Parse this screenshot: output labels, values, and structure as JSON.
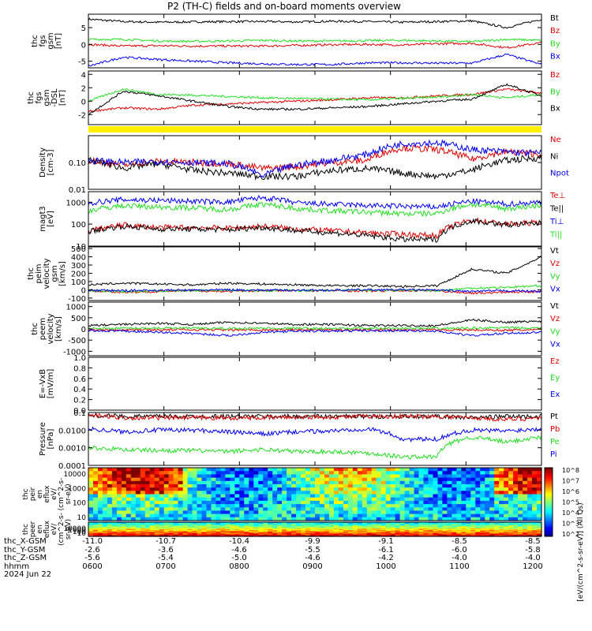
{
  "title": "P2 (TH-C) fields and on-board moments overview",
  "colors": {
    "black": "#000000",
    "red": "#dd0000",
    "green": "#22dd22",
    "blue": "#0000ee",
    "yellow": "#ffee00"
  },
  "chart_data": {
    "type": "line",
    "x_time_ticks": [
      "0600",
      "0700",
      "0800",
      "0900",
      "1000",
      "1100",
      "1200"
    ],
    "x_time_range": [
      "0600",
      "1200"
    ],
    "panels": [
      {
        "id": "fgs_gsm",
        "ylabel": [
          "thc",
          "fgs",
          "gsm",
          "[nT]"
        ],
        "ylim": [
          -7,
          9
        ],
        "yticks": [
          "5",
          "0",
          "-5"
        ],
        "series": [
          {
            "name": "Bt",
            "color": "black",
            "values": [
              7.5,
              6.8,
              6.6,
              6.7,
              6.8,
              6.8,
              6.7,
              6.9,
              6.8,
              6.6,
              6.8,
              7.0,
              5.0,
              7.5
            ]
          },
          {
            "name": "Bz",
            "color": "red",
            "values": [
              0,
              -0.5,
              -0.4,
              -0.5,
              -0.5,
              -0.5,
              -0.3,
              -0.1,
              0,
              -0.2,
              0.2,
              0.3,
              -1,
              0.5
            ]
          },
          {
            "name": "By",
            "color": "green",
            "values": [
              1.5,
              1.5,
              1.0,
              0.9,
              1.0,
              1.2,
              1.0,
              1.0,
              1.1,
              1.2,
              1.0,
              0.8,
              1.5,
              1.2
            ]
          },
          {
            "name": "Bx",
            "color": "blue",
            "values": [
              -6.5,
              -3.8,
              -4.5,
              -5.0,
              -5.5,
              -5.8,
              -6.0,
              -6.0,
              -5.5,
              -5.5,
              -5.6,
              -5.6,
              -3,
              -6
            ]
          }
        ]
      },
      {
        "id": "fgs_dsl",
        "ylabel": [
          "thc",
          "fgs",
          "gsm",
          "-DSL",
          "[nT]"
        ],
        "ylim": [
          -3.5,
          4.5
        ],
        "yticks": [
          "4",
          "2",
          "0",
          "-2"
        ],
        "series": [
          {
            "name": "Bz",
            "color": "red",
            "values": [
              -1.5,
              -1.0,
              -1.2,
              -0.6,
              -0.4,
              -0.2,
              0,
              0.2,
              0.5,
              0.5,
              0.8,
              1.0,
              1.8,
              1.2
            ]
          },
          {
            "name": "By",
            "color": "green",
            "values": [
              0,
              1.8,
              1.0,
              0.9,
              0.7,
              0.5,
              0.4,
              0.3,
              0.2,
              0.4,
              0.6,
              1.0,
              0.5,
              1.0
            ]
          },
          {
            "name": "Bx",
            "color": "black",
            "values": [
              -2,
              1.5,
              0.8,
              0,
              -0.8,
              -1.2,
              -1.2,
              -1.0,
              -0.8,
              -0.4,
              0,
              0.3,
              2.5,
              0.8
            ]
          }
        ]
      },
      {
        "id": "density",
        "ylabel": [
          "Density",
          "[cm-3]"
        ],
        "ylim": [
          0.01,
          1.0
        ],
        "log": true,
        "yticks": [
          "0.10",
          "0.01"
        ],
        "series": [
          {
            "name": "Ne",
            "color": "red",
            "values": [
              0.12,
              0.08,
              0.11,
              0.1,
              0.09,
              0.06,
              0.07,
              0.1,
              0.12,
              0.35,
              0.3,
              0.13,
              0.25,
              0.2
            ]
          },
          {
            "name": "Ni",
            "color": "black",
            "values": [
              0.12,
              0.06,
              0.09,
              0.05,
              0.04,
              0.03,
              0.03,
              0.05,
              0.06,
              0.04,
              0.03,
              0.05,
              0.12,
              0.15
            ]
          },
          {
            "name": "Npot",
            "color": "blue",
            "values": [
              0.12,
              0.1,
              0.11,
              0.1,
              0.09,
              0.03,
              0.08,
              0.12,
              0.2,
              0.5,
              0.55,
              0.3,
              0.25,
              0.22
            ]
          }
        ]
      },
      {
        "id": "temperature",
        "ylabel": [
          "magt3",
          "[eV]"
        ],
        "ylim": [
          10,
          3000
        ],
        "log": true,
        "yticks": [
          "1000",
          "100",
          "10"
        ],
        "series": [
          {
            "name": "Te⊥",
            "color": "red",
            "values": [
              50,
              90,
              70,
              70,
              65,
              80,
              60,
              50,
              40,
              35,
              30,
              150,
              100,
              120
            ]
          },
          {
            "name": "Te||",
            "color": "black",
            "values": [
              45,
              80,
              60,
              60,
              55,
              70,
              50,
              40,
              30,
              20,
              20,
              140,
              90,
              110
            ]
          },
          {
            "name": "Ti⊥",
            "color": "blue",
            "values": [
              900,
              1300,
              1200,
              1100,
              1000,
              1600,
              900,
              800,
              700,
              650,
              600,
              1100,
              800,
              1000
            ]
          },
          {
            "name": "Ti||",
            "color": "green",
            "values": [
              400,
              700,
              600,
              550,
              450,
              800,
              500,
              400,
              350,
              300,
              300,
              800,
              500,
              700
            ]
          }
        ]
      },
      {
        "id": "peim_velocity",
        "ylabel": [
          "thc",
          "peim",
          "velocity",
          "gsm",
          "[km/s]"
        ],
        "ylim": [
          -130,
          520
        ],
        "yticks": [
          "500",
          "400",
          "300",
          "200",
          "100",
          "0",
          "-100"
        ],
        "series": [
          {
            "name": "Vt",
            "color": "black",
            "values": [
              60,
              80,
              70,
              60,
              80,
              70,
              60,
              50,
              50,
              40,
              50,
              250,
              200,
              400
            ]
          },
          {
            "name": "Vz",
            "color": "red",
            "values": [
              -10,
              -30,
              -20,
              -10,
              -20,
              -10,
              -10,
              -10,
              -15,
              -10,
              -10,
              -40,
              -30,
              -20
            ]
          },
          {
            "name": "Vy",
            "color": "green",
            "values": [
              -10,
              -20,
              -15,
              -10,
              -5,
              -10,
              -10,
              -5,
              -5,
              -5,
              -10,
              20,
              30,
              50
            ]
          },
          {
            "name": "Vx",
            "color": "blue",
            "values": [
              -5,
              -10,
              -5,
              -5,
              0,
              -5,
              -5,
              -5,
              0,
              0,
              -5,
              -20,
              -10,
              -20
            ]
          }
        ]
      },
      {
        "id": "peem_velocity",
        "ylabel": [
          "thc",
          "peem",
          "velocity",
          "[km/s]"
        ],
        "ylim": [
          -1200,
          1200
        ],
        "yticks": [
          "1000",
          "500",
          "0",
          "-500",
          "-1000"
        ],
        "series": [
          {
            "name": "Vt",
            "color": "black",
            "values": [
              150,
              200,
              250,
              200,
              300,
              250,
              200,
              200,
              150,
              150,
              150,
              400,
              300,
              350
            ]
          },
          {
            "name": "Vz",
            "color": "red",
            "values": [
              -40,
              -30,
              -40,
              -30,
              -50,
              -40,
              -30,
              -40,
              -30,
              -30,
              -40,
              -50,
              -60,
              -40
            ]
          },
          {
            "name": "Vy",
            "color": "green",
            "values": [
              20,
              30,
              40,
              30,
              20,
              30,
              30,
              20,
              20,
              30,
              20,
              40,
              50,
              30
            ]
          },
          {
            "name": "Vx",
            "color": "blue",
            "values": [
              -80,
              -100,
              -150,
              -200,
              -300,
              -150,
              -100,
              -100,
              -80,
              -80,
              -100,
              -300,
              -200,
              -150
            ]
          }
        ]
      },
      {
        "id": "efield",
        "ylabel": [
          "E=-VxB",
          "[mV/m]"
        ],
        "ylim": [
          0,
          1.0
        ],
        "yticks": [
          "1.0",
          "0.8",
          "0.6",
          "0.4",
          "0.2",
          "0.0"
        ],
        "series": [
          {
            "name": "Ez",
            "color": "red",
            "values": []
          },
          {
            "name": "Ey",
            "color": "green",
            "values": []
          },
          {
            "name": "Ex",
            "color": "blue",
            "values": []
          }
        ]
      },
      {
        "id": "pressure",
        "ylabel": [
          "Pressure",
          "[nPa]"
        ],
        "ylim": [
          0.0001,
          0.1
        ],
        "log": true,
        "yticks": [
          "0.1",
          "0.0100",
          "0.0010",
          "0.0001"
        ],
        "series": [
          {
            "name": "Pt",
            "color": "black",
            "values": [
              0.07,
              0.06,
              0.06,
              0.06,
              0.06,
              0.06,
              0.06,
              0.06,
              0.06,
              0.06,
              0.06,
              0.05,
              0.06,
              0.06
            ]
          },
          {
            "name": "Pb",
            "color": "red",
            "values": [
              0.07,
              0.05,
              0.05,
              0.05,
              0.05,
              0.05,
              0.055,
              0.055,
              0.06,
              0.06,
              0.06,
              0.05,
              0.04,
              0.05
            ]
          },
          {
            "name": "Pe",
            "color": "green",
            "values": [
              0.001,
              0.0008,
              0.0007,
              0.0007,
              0.0006,
              0.0008,
              0.0006,
              0.0006,
              0.0005,
              0.0003,
              0.0003,
              0.004,
              0.002,
              0.004
            ]
          },
          {
            "name": "Pi",
            "color": "blue",
            "values": [
              0.012,
              0.008,
              0.01,
              0.01,
              0.008,
              0.006,
              0.008,
              0.009,
              0.012,
              0.003,
              0.003,
              0.01,
              0.009,
              0.012
            ]
          }
        ]
      }
    ],
    "spectrograms": [
      {
        "id": "peir_en_eflux",
        "ylabel": [
          "thc",
          "peir",
          "en",
          "eflux",
          "eV/",
          "(cm^2-s-",
          "sr-eV)"
        ],
        "yticks": [
          "10000",
          "1000",
          "100",
          "10"
        ]
      },
      {
        "id": "peer_en_eflux",
        "ylabel": [
          "thc",
          "peer",
          "en",
          "eflux",
          "eV/",
          "(cm^2-s-",
          "sr-eV)"
        ],
        "yticks": [
          "10000",
          "1000",
          "100",
          "10"
        ]
      }
    ],
    "colorbar": {
      "label": "[eV/(cm^2-s-sr-eV)] (All Qs)",
      "ticks": [
        "10^8",
        "10^7",
        "10^6",
        "10^5",
        "10^4",
        "10^3",
        "10^2"
      ]
    }
  },
  "footer": {
    "rows": [
      {
        "label": "thc_X-GSM",
        "values": [
          "-11.0",
          "-10.7",
          "-10.4",
          "-9.9",
          "-9.1",
          "-8.5",
          "-8.5"
        ]
      },
      {
        "label": "thc_Y-GSM",
        "values": [
          "-2.6",
          "-3.6",
          "-4.6",
          "-5.5",
          "-6.1",
          "-6.0",
          "-5.8"
        ]
      },
      {
        "label": "thc_Z-GSM",
        "values": [
          "-5.6",
          "-5.4",
          "-5.0",
          "-4.6",
          "-4.2",
          "-4.0",
          "-4.0"
        ]
      },
      {
        "label": "hhmm",
        "values": [
          "0600",
          "0700",
          "0800",
          "0900",
          "1000",
          "1100",
          "1200"
        ]
      }
    ],
    "date": "2024 Jun 22"
  }
}
